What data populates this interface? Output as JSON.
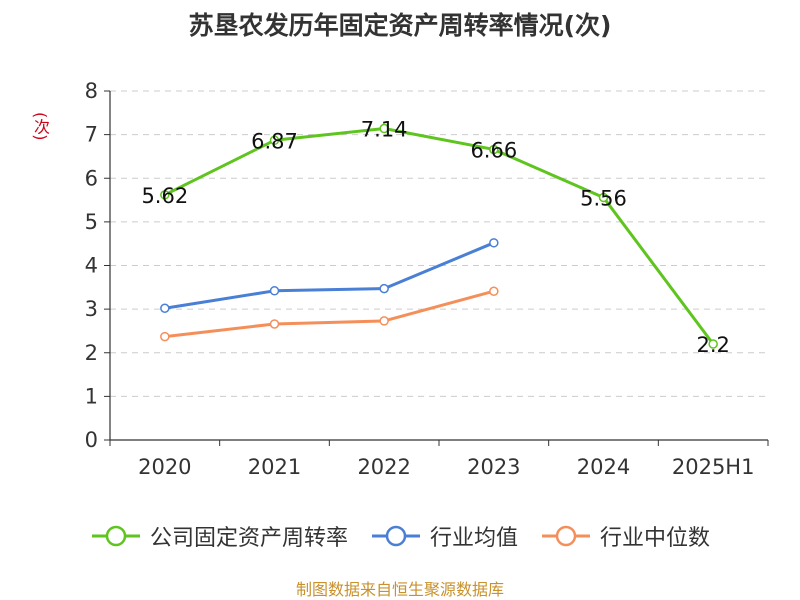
{
  "title": "苏垦农发历年固定资产周转率情况(次)",
  "y_unit": "(次)",
  "source": "制图数据来自恒生聚源数据库",
  "chart_data": {
    "type": "line",
    "title": "苏垦农发历年固定资产周转率情况(次)",
    "ylabel": "(次)",
    "categories": [
      "2020",
      "2021",
      "2022",
      "2023",
      "2024",
      "2025H1"
    ],
    "ylim": [
      0,
      8
    ],
    "yticks": [
      0,
      1,
      2,
      3,
      4,
      5,
      6,
      7,
      8
    ],
    "grid": true,
    "legend_position": "bottom",
    "series": [
      {
        "name": "公司固定资产周转率",
        "color": "#5ec41e",
        "values": [
          5.62,
          6.87,
          7.14,
          6.66,
          5.56,
          2.2
        ],
        "labels": [
          "5.62",
          "6.87",
          "7.14",
          "6.66",
          "5.56",
          "2.2"
        ],
        "show_labels": true
      },
      {
        "name": "行业均值",
        "color": "#4a7fd6",
        "values": [
          3.02,
          3.42,
          3.47,
          4.52,
          null,
          null
        ],
        "show_labels": false
      },
      {
        "name": "行业中位数",
        "color": "#f58f5a",
        "values": [
          2.37,
          2.66,
          2.73,
          3.41,
          null,
          null
        ],
        "show_labels": false
      }
    ]
  }
}
